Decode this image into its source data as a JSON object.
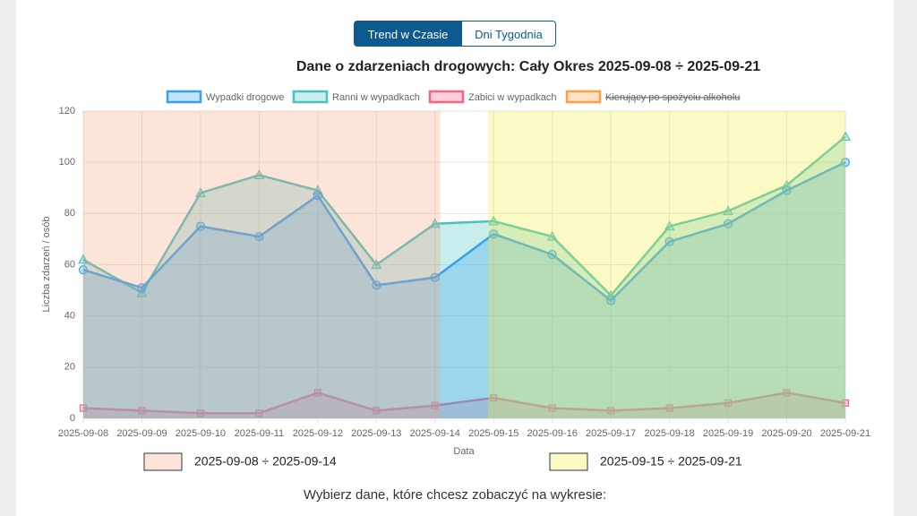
{
  "tabs": [
    "Trend w Czasie",
    "Dni Tygodnia"
  ],
  "chart_data": {
    "type": "line",
    "title": "Dane o zdarzeniach drogowych: Cały Okres 2025-09-08 ÷ 2025-09-21",
    "x_label": "Data",
    "y_label": "Liczba zdarzeń / osób",
    "categories": [
      "2025-09-08",
      "2025-09-09",
      "2025-09-10",
      "2025-09-11",
      "2025-09-12",
      "2025-09-13",
      "2025-09-14",
      "2025-09-15",
      "2025-09-16",
      "2025-09-17",
      "2025-09-18",
      "2025-09-19",
      "2025-09-20",
      "2025-09-21"
    ],
    "series": [
      {
        "name": "Wypadki drogowe",
        "color": "#36a2eb",
        "marker": "circle",
        "values": [
          58,
          51,
          75,
          71,
          87,
          52,
          55,
          72,
          64,
          46,
          69,
          76,
          89,
          100
        ]
      },
      {
        "name": "Ranni w wypadkach",
        "color": "#4bc0c0",
        "marker": "triangle",
        "values": [
          62,
          49,
          88,
          95,
          89,
          60,
          76,
          77,
          71,
          48,
          75,
          81,
          91,
          110
        ]
      },
      {
        "name": "Zabici w wypadkach",
        "color": "#ff6384",
        "marker": "square",
        "values": [
          4,
          3,
          2,
          2,
          10,
          3,
          5,
          8,
          4,
          3,
          4,
          6,
          10,
          6
        ]
      },
      {
        "name": "Kierujący po spożyciu alkoholu",
        "color": "#ff9f40",
        "hidden": true
      }
    ],
    "ylim": [
      0,
      120
    ],
    "yticks": [
      0,
      20,
      40,
      60,
      80,
      100,
      120
    ],
    "grid": true,
    "ranges": [
      {
        "label": "2025-09-08 ÷ 2025-09-14",
        "color": "#f4a582"
      },
      {
        "label": "2025-09-15 ÷ 2025-09-21",
        "color": "#f5f03c"
      }
    ]
  },
  "footer": "Wybierz dane, które chcesz zobaczyć na wykresie:"
}
